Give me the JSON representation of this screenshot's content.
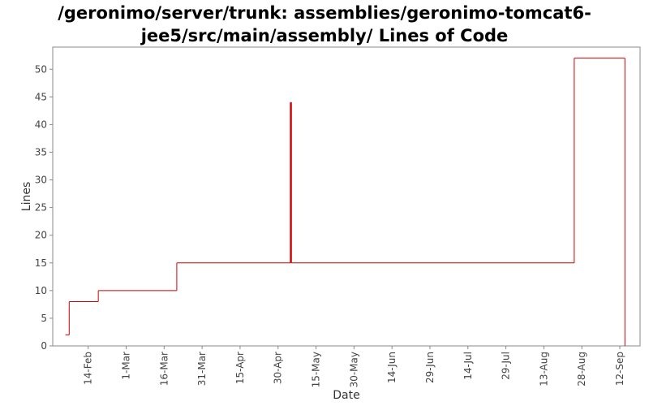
{
  "chart_data": {
    "type": "line",
    "title_lines": [
      "/geronimo/server/trunk: assemblies/geronimo-tomcat6-",
      "jee5/src/main/assembly/ Lines of Code"
    ],
    "xlabel": "Date",
    "ylabel": "Lines",
    "ylim": [
      0,
      54
    ],
    "y_ticks": [
      0,
      5,
      10,
      15,
      20,
      25,
      30,
      35,
      40,
      45,
      50
    ],
    "x_day_range": [
      0,
      232
    ],
    "x_ticks": [
      {
        "label": "14-Feb",
        "day": 14
      },
      {
        "label": "1-Mar",
        "day": 29
      },
      {
        "label": "16-Mar",
        "day": 44
      },
      {
        "label": "31-Mar",
        "day": 59
      },
      {
        "label": "15-Apr",
        "day": 74
      },
      {
        "label": "30-Apr",
        "day": 89
      },
      {
        "label": "15-May",
        "day": 104
      },
      {
        "label": "30-May",
        "day": 119
      },
      {
        "label": "14-Jun",
        "day": 134
      },
      {
        "label": "29-Jun",
        "day": 149
      },
      {
        "label": "14-Jul",
        "day": 164
      },
      {
        "label": "29-Jul",
        "day": 179
      },
      {
        "label": "13-Aug",
        "day": 194
      },
      {
        "label": "28-Aug",
        "day": 209
      },
      {
        "label": "12-Sep",
        "day": 224
      }
    ],
    "series": [
      {
        "name": "Lines of Code",
        "color": "#cc0000",
        "step": true,
        "points": [
          {
            "day": 5.0,
            "value": 2
          },
          {
            "day": 6.5,
            "value": 8
          },
          {
            "day": 18.0,
            "value": 10
          },
          {
            "day": 49.0,
            "value": 15
          },
          {
            "day": 94.0,
            "value": 44
          },
          {
            "day": 94.3,
            "value": 15
          },
          {
            "day": 206.0,
            "value": 52
          },
          {
            "day": 226.0,
            "value": 0
          }
        ]
      }
    ],
    "colors": {
      "axis": "#888888",
      "plot_background": "#ffffff",
      "series": "#cc0000"
    }
  }
}
